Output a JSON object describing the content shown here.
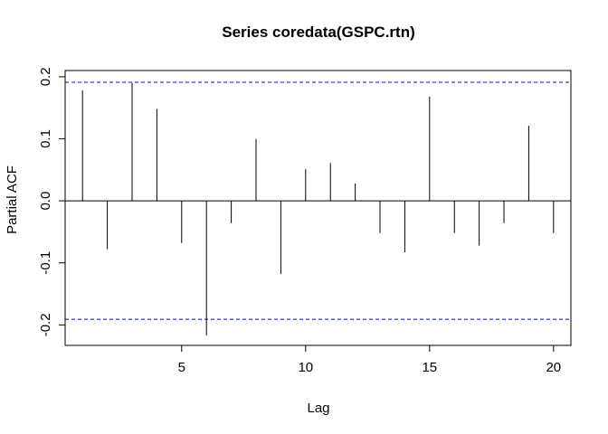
{
  "chart_data": {
    "type": "bar",
    "title": "Series  coredata(GSPC.rtn)",
    "xlabel": "Lag",
    "ylabel": "Partial ACF",
    "xlim": [
      0.3,
      20.7
    ],
    "ylim": [
      -0.233,
      0.21
    ],
    "x_ticks": [
      5,
      10,
      15,
      20
    ],
    "y_ticks": [
      -0.2,
      -0.1,
      0.0,
      0.1,
      0.2
    ],
    "x_tick_labels": [
      "5",
      "10",
      "15",
      "20"
    ],
    "y_tick_labels": [
      "-0.2",
      "-0.1",
      "0.0",
      "0.1",
      "0.2"
    ],
    "confidence_limit": 0.191,
    "confidence_color": "#0000cc",
    "lags": [
      1,
      2,
      3,
      4,
      5,
      6,
      7,
      8,
      9,
      10,
      11,
      12,
      13,
      14,
      15,
      16,
      17,
      18,
      19,
      20
    ],
    "values": [
      0.178,
      -0.078,
      0.19,
      0.148,
      -0.068,
      -0.217,
      -0.036,
      0.1,
      -0.118,
      0.051,
      0.061,
      0.028,
      -0.052,
      -0.083,
      0.168,
      -0.052,
      -0.072,
      -0.036,
      0.121,
      -0.052
    ]
  }
}
